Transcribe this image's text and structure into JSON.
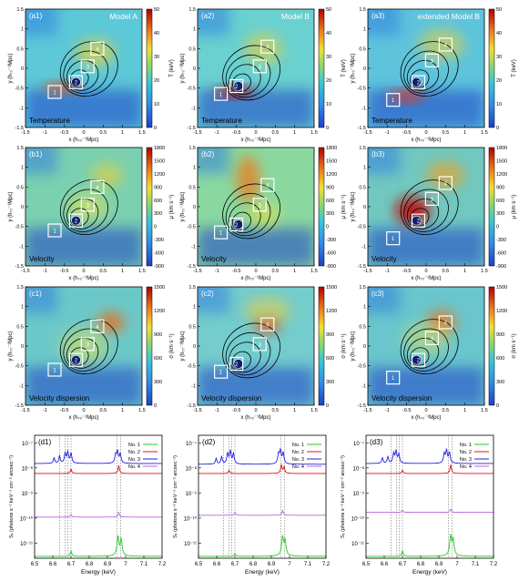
{
  "colors": {
    "series": [
      "#22cc22",
      "#dd1111",
      "#2222dd",
      "#bb66dd"
    ],
    "map_low": "#1c40c8",
    "map_high": "#b00000",
    "contour": "#000000",
    "box": "#ffffff"
  },
  "map_axes": {
    "xlabel": "x (h₇₀⁻¹Mpc)",
    "ylabel": "y (h₇₀⁻¹Mpc)",
    "x_ticks": [
      "-1.5",
      "-1",
      "-0.5",
      "0",
      "0.5",
      "1",
      "1.5"
    ],
    "y_ticks": [
      "1.5",
      "1",
      "0.5",
      "0",
      "-0.5",
      "-1",
      "-1.5"
    ]
  },
  "rows": [
    {
      "quantity": "Temperature",
      "cbar_label": "T (keV)",
      "cbar_ticks": [
        "50",
        "40",
        "30",
        "20",
        "10",
        "0"
      ]
    },
    {
      "quantity": "Velocity",
      "cbar_label": "μ (km s⁻¹)",
      "cbar_ticks": [
        "1800",
        "1500",
        "1200",
        "900",
        "600",
        "300",
        "0",
        "-300",
        "-600",
        "-900"
      ]
    },
    {
      "quantity": "Velocity dispersion",
      "cbar_label": "σ (km s⁻¹)",
      "cbar_ticks": [
        "1500",
        "1200",
        "900",
        "600",
        "300",
        "0"
      ]
    }
  ],
  "columns": [
    {
      "model": "Model A"
    },
    {
      "model": "Model B"
    },
    {
      "model": "extended Model B"
    }
  ],
  "panel_ids": [
    [
      "(a1)",
      "(a2)",
      "(a3)"
    ],
    [
      "(b1)",
      "(b2)",
      "(b3)"
    ],
    [
      "(c1)",
      "(c2)",
      "(c3)"
    ]
  ],
  "box_labels": [
    "1",
    "2",
    "3",
    "4"
  ],
  "chart_data": [
    {
      "id": "(d1)",
      "type": "line",
      "xlabel": "Energy (keV)",
      "ylabel": "Sₓ (photons s⁻¹ keV⁻¹ cm⁻² arcsec⁻²)",
      "xlim": [
        6.5,
        7.2
      ],
      "ylim_log10": [
        -11.6,
        -6.7
      ],
      "yscale": "log",
      "x_ticks": [
        "6.5",
        "6.6",
        "6.7",
        "6.8",
        "6.9",
        "7",
        "7.1",
        "7.2"
      ],
      "y_ticks": [
        "10⁻⁷",
        "10⁻⁸",
        "10⁻⁹",
        "10⁻¹⁰",
        "10⁻¹¹"
      ],
      "legend": "top-right",
      "ref_lines": [
        6.637,
        6.668,
        6.682,
        6.7,
        6.952,
        6.973
      ],
      "series": [
        {
          "name": "No. 1",
          "base": 3e-12,
          "line_x": [
            6.7,
            6.958,
            6.975
          ],
          "line_y": [
            5e-12,
            2e-11,
            1.6e-11
          ]
        },
        {
          "name": "No. 2",
          "base": 6e-09,
          "line_x": [
            6.7,
            6.962
          ],
          "line_y": [
            9e-09,
            1.2e-08
          ]
        },
        {
          "name": "No. 3",
          "base": 1.5e-08,
          "line_x": [
            6.607,
            6.637,
            6.668,
            6.682,
            6.7,
            6.945,
            6.955,
            6.97
          ],
          "line_y": [
            2.5e-08,
            3e-08,
            4e-08,
            4.5e-08,
            4e-08,
            3.5e-08,
            5e-08,
            3.8e-08
          ]
        },
        {
          "name": "No. 4",
          "base": 1.1e-10,
          "line_x": [
            6.7,
            6.962
          ],
          "line_y": [
            1.4e-10,
            1.7e-10
          ]
        }
      ]
    },
    {
      "id": "(d2)",
      "type": "line",
      "xlabel": "Energy (keV)",
      "ylabel": "Sₓ (photons s⁻¹ keV⁻¹ cm⁻² arcsec⁻²)",
      "xlim": [
        6.5,
        7.2
      ],
      "ylim_log10": [
        -11.6,
        -6.7
      ],
      "yscale": "log",
      "x_ticks": [
        "6.5",
        "6.6",
        "6.7",
        "6.8",
        "6.9",
        "7",
        "7.1",
        "7.2"
      ],
      "y_ticks": [
        "10⁻⁷",
        "10⁻⁸",
        "10⁻⁹",
        "10⁻¹⁰",
        "10⁻¹¹"
      ],
      "legend": "top-right",
      "ref_lines": [
        6.637,
        6.668,
        6.682,
        6.7,
        6.952,
        6.973
      ],
      "series": [
        {
          "name": "No. 1",
          "base": 3e-12,
          "line_x": [
            6.7,
            6.962,
            6.975
          ],
          "line_y": [
            4e-12,
            2e-11,
            1.5e-11
          ]
        },
        {
          "name": "No. 2",
          "base": 6e-09,
          "line_x": [
            6.668,
            6.955,
            6.97
          ],
          "line_y": [
            8e-09,
            1.3e-08,
            1.1e-08
          ]
        },
        {
          "name": "No. 3",
          "base": 1.4e-08,
          "line_x": [
            6.597,
            6.627,
            6.66,
            6.675,
            6.692,
            6.94,
            6.95,
            6.965
          ],
          "line_y": [
            2.4e-08,
            2.8e-08,
            4e-08,
            5e-08,
            3.8e-08,
            3.8e-08,
            5.5e-08,
            4.2e-08
          ]
        },
        {
          "name": "No. 4",
          "base": 1.3e-10,
          "line_x": [
            6.7,
            6.962
          ],
          "line_y": [
            1.7e-10,
            2e-10
          ]
        }
      ]
    },
    {
      "id": "(d3)",
      "type": "line",
      "xlabel": "Energy (keV)",
      "ylabel": "Sₓ (photons s⁻¹ keV⁻¹ cm⁻² arcsec⁻²)",
      "xlim": [
        6.5,
        7.2
      ],
      "ylim_log10": [
        -11.6,
        -6.7
      ],
      "yscale": "log",
      "x_ticks": [
        "6.5",
        "6.6",
        "6.7",
        "6.8",
        "6.9",
        "7",
        "7.1",
        "7.2"
      ],
      "y_ticks": [
        "10⁻⁷",
        "10⁻⁸",
        "10⁻⁹",
        "10⁻¹⁰",
        "10⁻¹¹"
      ],
      "legend": "top-right",
      "ref_lines": [
        6.637,
        6.668,
        6.682,
        6.7,
        6.952,
        6.973
      ],
      "series": [
        {
          "name": "No. 1",
          "base": 3e-12,
          "line_x": [
            6.7,
            6.965,
            6.978
          ],
          "line_y": [
            5e-12,
            2.2e-11,
            1.6e-11
          ]
        },
        {
          "name": "No. 2",
          "base": 6e-09,
          "line_x": [
            6.7,
            6.965
          ],
          "line_y": [
            8e-09,
            1.3e-08
          ]
        },
        {
          "name": "No. 3",
          "base": 1.5e-08,
          "line_x": [
            6.59,
            6.62,
            6.652,
            6.665,
            6.68,
            6.93,
            6.942,
            6.958
          ],
          "line_y": [
            2.5e-08,
            2.8e-08,
            4e-08,
            5e-08,
            3.6e-08,
            3.8e-08,
            5.5e-08,
            4.3e-08
          ]
        },
        {
          "name": "No. 4",
          "base": 1.7e-10,
          "line_x": [
            6.7,
            6.965
          ],
          "line_y": [
            2.1e-10,
            2.3e-10
          ]
        }
      ]
    }
  ]
}
